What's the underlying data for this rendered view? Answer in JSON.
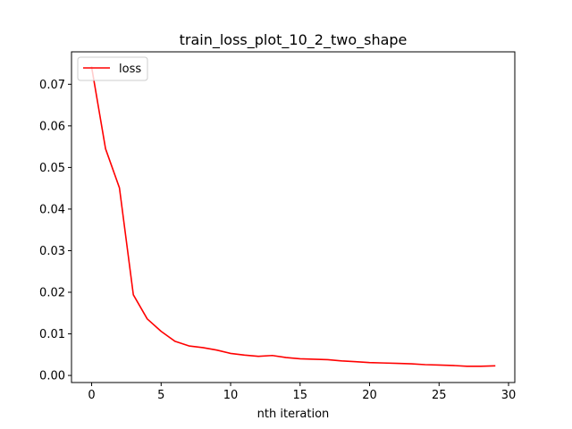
{
  "chart_data": {
    "type": "line",
    "title": "train_loss_plot_10_2_two_shape",
    "xlabel": "nth iteration",
    "ylabel": "",
    "xlim": [
      -1.45,
      30.45
    ],
    "ylim": [
      -0.0017,
      0.0778
    ],
    "xticks": [
      0,
      5,
      10,
      15,
      20,
      25,
      30
    ],
    "yticks": [
      0.0,
      0.01,
      0.02,
      0.03,
      0.04,
      0.05,
      0.06,
      0.07
    ],
    "ytick_labels": [
      "0.00",
      "0.01",
      "0.02",
      "0.03",
      "0.04",
      "0.05",
      "0.06",
      "0.07"
    ],
    "grid": false,
    "legend": {
      "placement": "top-left"
    },
    "series": [
      {
        "name": "loss",
        "color": "#ff0000",
        "x": [
          0,
          1,
          2,
          3,
          4,
          5,
          6,
          7,
          8,
          9,
          10,
          11,
          12,
          13,
          14,
          15,
          16,
          17,
          18,
          19,
          20,
          21,
          22,
          23,
          24,
          25,
          26,
          27,
          28,
          29
        ],
        "y": [
          0.0741,
          0.0545,
          0.0451,
          0.0194,
          0.0136,
          0.0106,
          0.0082,
          0.0071,
          0.0067,
          0.0061,
          0.0053,
          0.0049,
          0.0046,
          0.0048,
          0.0043,
          0.004,
          0.0039,
          0.0038,
          0.0035,
          0.0033,
          0.0031,
          0.003,
          0.0029,
          0.0028,
          0.0026,
          0.0025,
          0.0024,
          0.0022,
          0.0022,
          0.0023
        ]
      }
    ]
  }
}
